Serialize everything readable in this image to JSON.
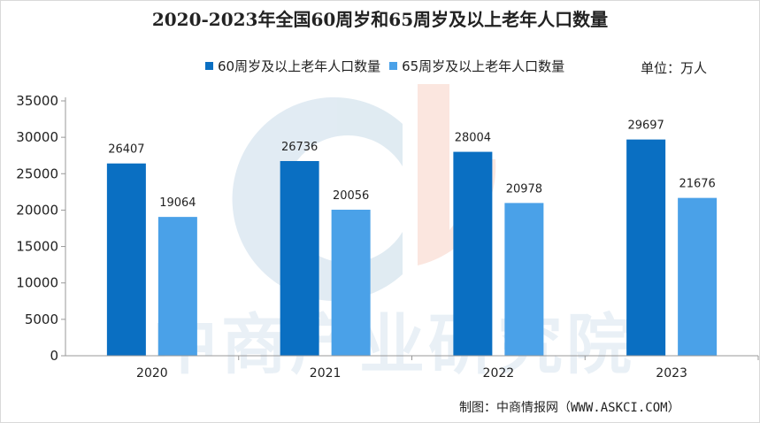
{
  "chart_data": {
    "type": "bar",
    "title": "2020-2023年全国60周岁和65周岁及以上老年人口数量",
    "categories": [
      "2020",
      "2021",
      "2022",
      "2023"
    ],
    "series": [
      {
        "name": "60周岁及以上老年人口数量",
        "values": [
          26407,
          26736,
          28004,
          29697
        ],
        "color": "#0a6fc2"
      },
      {
        "name": "65周岁及以上老年人口数量",
        "values": [
          19064,
          20056,
          20978,
          21676
        ],
        "color": "#4aa1e8"
      }
    ],
    "y_ticks": [
      "0",
      "5000",
      "10000",
      "15000",
      "20000",
      "25000",
      "30000",
      "35000"
    ],
    "ylim": [
      0,
      35000
    ],
    "grid": false,
    "legend_position": "top"
  },
  "unit_label": "单位：万人",
  "source": "制图：中商情报网（WWW.ASKCI.COM）",
  "watermark": "中商产业研究院"
}
